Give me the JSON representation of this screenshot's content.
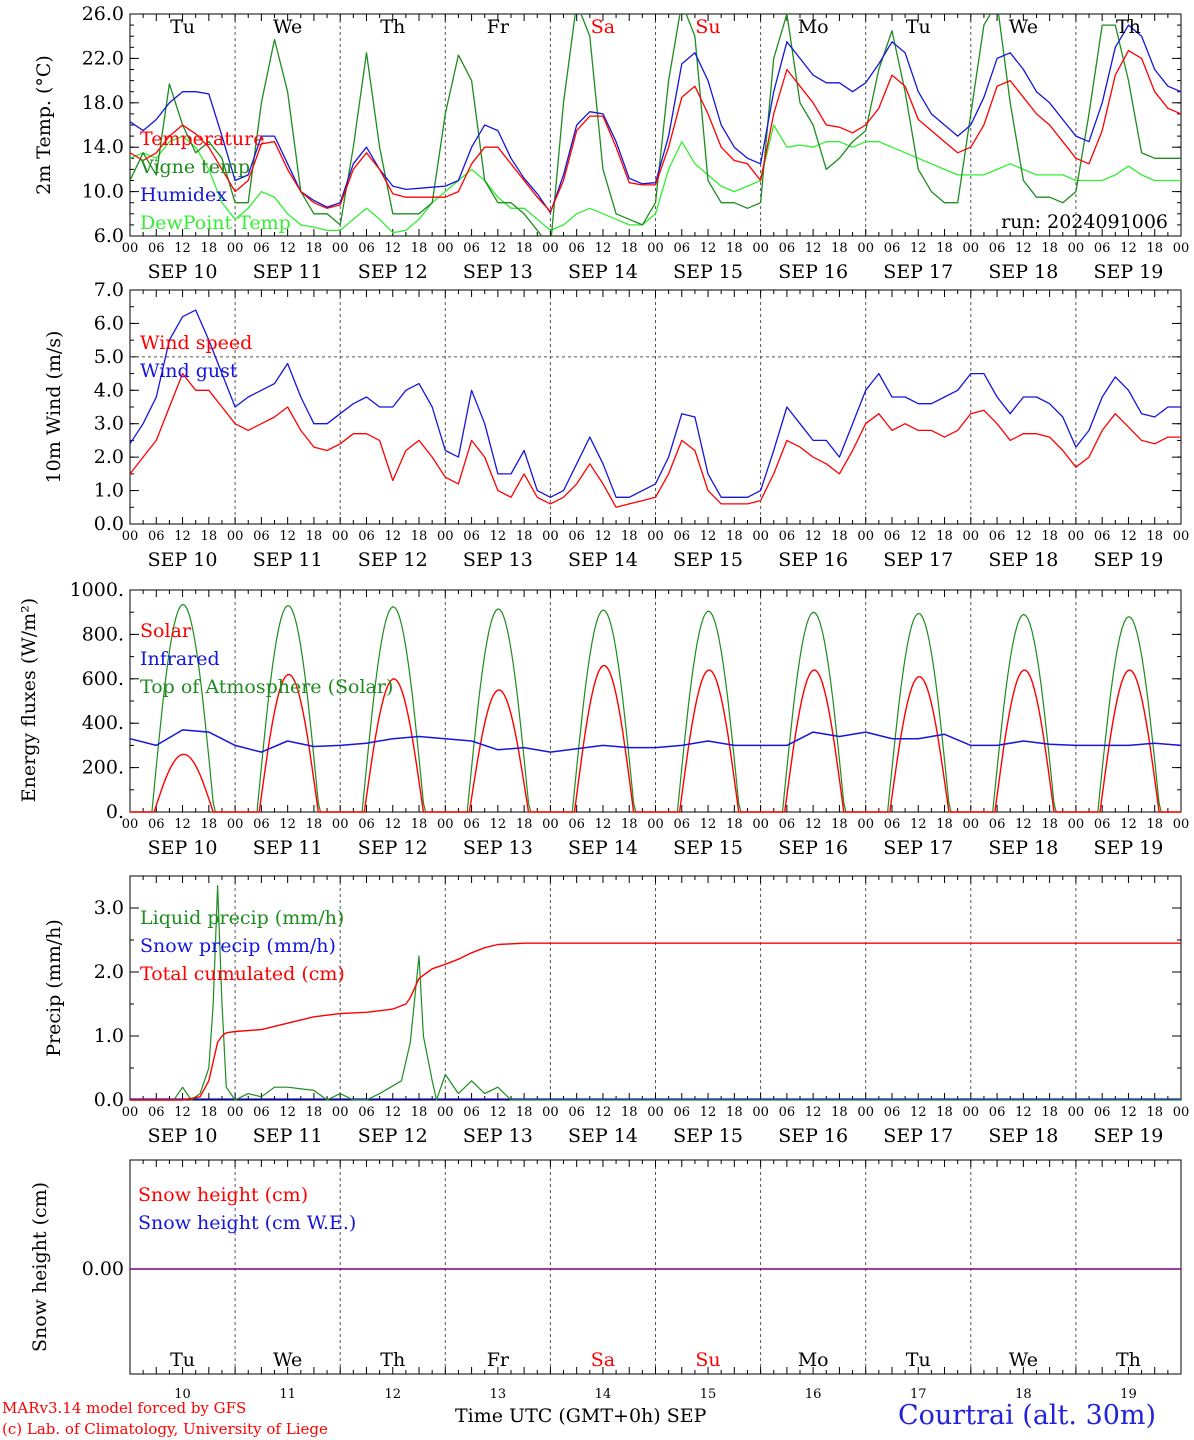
{
  "footer": {
    "credit_line1": "MARv3.14 model forced by GFS",
    "credit_line2": "(c) Lab. of Climatology, University of Liege",
    "xaxis_title": "Time UTC (GMT+0h) SEP",
    "station": "Courtrai (alt. 30m)"
  },
  "colors": {
    "red": "#ff0000",
    "darkgreen": "#1e8c1e",
    "blue": "#1515dd",
    "lightgreen": "#33ee33",
    "purple": "#800080"
  },
  "chart_data": [
    {
      "id": "temperature",
      "type": "line",
      "ylabel": "2m Temp. (°C)",
      "ylim": [
        6,
        26
      ],
      "yticks": [
        "6.0",
        "10.0",
        "14.0",
        "18.0",
        "22.0",
        "26.0"
      ],
      "day_names": [
        "Tu",
        "We",
        "Th",
        "Fr",
        "Sa",
        "Su",
        "Mo",
        "Tu",
        "We",
        "Th"
      ],
      "date_labels": [
        "SEP 10",
        "SEP 11",
        "SEP 12",
        "SEP 13",
        "SEP 14",
        "SEP 15",
        "SEP 16",
        "SEP 17",
        "SEP 18",
        "SEP 19"
      ],
      "hour_labels": [
        "00",
        "06",
        "12",
        "18"
      ],
      "annotation": "run: 2024091006",
      "x_hours": [
        0,
        3,
        6,
        9,
        12,
        15,
        18,
        21,
        24,
        27,
        30,
        33,
        36,
        39,
        42,
        45,
        48,
        51,
        54,
        57,
        60,
        63,
        66,
        69,
        72,
        75,
        78,
        81,
        84,
        87,
        90,
        93,
        96,
        99,
        102,
        105,
        108,
        111,
        114,
        117,
        120,
        123,
        126,
        129,
        132,
        135,
        138,
        141,
        144,
        147,
        150,
        153,
        156,
        159,
        162,
        165,
        168,
        171,
        174,
        177,
        180,
        183,
        186,
        189,
        192,
        195,
        198,
        201,
        204,
        207,
        210,
        213,
        216,
        219,
        222,
        225,
        228,
        231,
        234,
        237,
        240
      ],
      "series": [
        {
          "name": "Temperature",
          "color": "red",
          "values": [
            13.5,
            12.8,
            13.5,
            15,
            16,
            15.2,
            14,
            12,
            10,
            11,
            14.3,
            14.5,
            12,
            10,
            9,
            8.5,
            8.8,
            12,
            13.5,
            12,
            9.8,
            9.5,
            9.5,
            9.5,
            9.5,
            10,
            12.5,
            14,
            14,
            12.5,
            11,
            9.5,
            8.2,
            11,
            15.5,
            16.8,
            16.8,
            14,
            10.8,
            10.6,
            10.6,
            14,
            18.5,
            19.5,
            17,
            14,
            12.8,
            12.5,
            11,
            17,
            21,
            19.5,
            18,
            16,
            15.8,
            15.3,
            16,
            17.5,
            20.5,
            19.5,
            16.5,
            15.5,
            14.5,
            13.5,
            14,
            16,
            19.5,
            20,
            18.5,
            17,
            16,
            14.5,
            13,
            12.5,
            15.5,
            20.5,
            22.7,
            22,
            19,
            17.5,
            17
          ]
        },
        {
          "name": "Vigne temp",
          "color": "darkgreen",
          "values": [
            11,
            13.5,
            11.5,
            19.7,
            16,
            13.5,
            14.5,
            13,
            9,
            9,
            18,
            23.7,
            19,
            10,
            8,
            8,
            7,
            14,
            22.5,
            14,
            8,
            8,
            8,
            9,
            17,
            22.3,
            20,
            11,
            9,
            9,
            8,
            6.5,
            5,
            18,
            27,
            24,
            12,
            8,
            7.5,
            7,
            9,
            20,
            27,
            24,
            11,
            9,
            9,
            8.5,
            9,
            22,
            26,
            18,
            16,
            12,
            13,
            14.5,
            15.5,
            21,
            24.5,
            19,
            12,
            10,
            9,
            9,
            17,
            25,
            27,
            18,
            11,
            9.5,
            9.5,
            9,
            10,
            17,
            25,
            25,
            20,
            13.5,
            13,
            13,
            13
          ]
        },
        {
          "name": "Humidex",
          "color": "blue",
          "values": [
            16.3,
            15.5,
            16.5,
            18,
            19,
            19,
            18.8,
            15,
            11,
            11.5,
            15,
            15,
            12.5,
            10,
            9.2,
            8.6,
            9,
            12.5,
            14,
            12,
            10.5,
            10.2,
            10.3,
            10.4,
            10.5,
            11,
            14,
            16,
            15.5,
            13,
            11.2,
            9.8,
            8.1,
            11.5,
            16,
            17.2,
            17,
            14.5,
            11.2,
            10.7,
            10.8,
            15,
            21.5,
            22.5,
            20,
            16,
            14,
            13,
            12.5,
            19,
            23.5,
            22,
            20.5,
            19.8,
            19.8,
            19,
            19.8,
            21.5,
            23.5,
            22.5,
            19,
            17,
            16,
            15,
            16,
            18.5,
            22,
            22.5,
            21,
            19,
            18,
            16.5,
            15,
            14.5,
            18,
            23,
            25,
            24,
            21,
            19.5,
            19
          ]
        },
        {
          "name": "DewPoint Temp",
          "color": "lightgreen",
          "values": [
            13,
            13.5,
            13,
            14.5,
            15,
            14,
            12,
            9,
            7.5,
            8.5,
            10,
            9.5,
            8,
            7,
            6.8,
            6.5,
            6.5,
            7.5,
            8.5,
            7.5,
            6.3,
            6.5,
            7.5,
            9,
            10,
            11,
            12,
            11,
            9.5,
            8.5,
            8.5,
            7.5,
            6.5,
            7,
            8,
            8.5,
            8,
            7.5,
            7,
            7,
            8,
            12,
            14.5,
            12.5,
            11.5,
            10.5,
            10,
            10.5,
            11,
            16,
            14,
            14.2,
            14,
            14.5,
            14.5,
            14,
            14.5,
            14.5,
            14,
            13.5,
            13,
            12.5,
            12,
            11.5,
            11.5,
            11.5,
            12,
            12.5,
            12,
            11.5,
            11.5,
            11.5,
            11,
            11,
            11,
            11.5,
            12.3,
            11.5,
            11,
            11,
            11
          ]
        }
      ]
    },
    {
      "id": "wind",
      "type": "line",
      "ylabel": "10m Wind (m/s)",
      "ylim": [
        0,
        7
      ],
      "yticks": [
        "0.0",
        "1.0",
        "2.0",
        "3.0",
        "4.0",
        "5.0",
        "6.0",
        "7.0"
      ],
      "date_labels": [
        "SEP 10",
        "SEP 11",
        "SEP 12",
        "SEP 13",
        "SEP 14",
        "SEP 15",
        "SEP 16",
        "SEP 17",
        "SEP 18",
        "SEP 19"
      ],
      "hour_labels": [
        "00",
        "06",
        "12",
        "18"
      ],
      "x_hours": [
        0,
        3,
        6,
        9,
        12,
        15,
        18,
        21,
        24,
        27,
        30,
        33,
        36,
        39,
        42,
        45,
        48,
        51,
        54,
        57,
        60,
        63,
        66,
        69,
        72,
        75,
        78,
        81,
        84,
        87,
        90,
        93,
        96,
        99,
        102,
        105,
        108,
        111,
        114,
        117,
        120,
        123,
        126,
        129,
        132,
        135,
        138,
        141,
        144,
        147,
        150,
        153,
        156,
        159,
        162,
        165,
        168,
        171,
        174,
        177,
        180,
        183,
        186,
        189,
        192,
        195,
        198,
        201,
        204,
        207,
        210,
        213,
        216,
        219,
        222,
        225,
        228,
        231,
        234,
        237,
        240
      ],
      "series": [
        {
          "name": "Wind speed",
          "color": "red",
          "values": [
            1.5,
            2,
            2.5,
            3.5,
            4.5,
            4,
            4,
            3.5,
            3,
            2.8,
            3,
            3.2,
            3.5,
            2.8,
            2.3,
            2.2,
            2.4,
            2.7,
            2.7,
            2.5,
            1.3,
            2.2,
            2.5,
            2,
            1.4,
            1.2,
            2.5,
            2,
            1,
            0.8,
            1.5,
            0.8,
            0.6,
            0.8,
            1.2,
            1.8,
            1.2,
            0.5,
            0.6,
            0.7,
            0.8,
            1.5,
            2.5,
            2.2,
            1,
            0.6,
            0.6,
            0.6,
            0.7,
            1.5,
            2.5,
            2.3,
            2,
            1.8,
            1.5,
            2.2,
            3,
            3.3,
            2.8,
            3,
            2.8,
            2.8,
            2.6,
            2.8,
            3.3,
            3.4,
            3,
            2.5,
            2.7,
            2.7,
            2.6,
            2.2,
            1.7,
            2,
            2.8,
            3.3,
            2.9,
            2.5,
            2.4,
            2.6,
            2.6
          ]
        },
        {
          "name": "Wind gust",
          "color": "blue",
          "values": [
            2.4,
            3,
            3.8,
            5.5,
            6.2,
            6.4,
            5.5,
            4.5,
            3.5,
            3.8,
            4,
            4.2,
            4.8,
            3.8,
            3,
            3,
            3.3,
            3.6,
            3.8,
            3.5,
            3.5,
            4,
            4.2,
            3.5,
            2.2,
            2,
            4,
            3,
            1.5,
            1.5,
            2.2,
            1,
            0.8,
            1,
            1.8,
            2.6,
            1.8,
            0.8,
            0.8,
            1,
            1.2,
            2,
            3.3,
            3.2,
            1.5,
            0.8,
            0.8,
            0.8,
            1,
            2.2,
            3.5,
            3,
            2.5,
            2.5,
            2,
            3,
            4,
            4.5,
            3.8,
            3.8,
            3.6,
            3.6,
            3.8,
            4,
            4.5,
            4.5,
            3.8,
            3.3,
            3.8,
            3.8,
            3.6,
            3.2,
            2.3,
            2.8,
            3.8,
            4.4,
            4,
            3.3,
            3.2,
            3.5,
            3.5
          ]
        }
      ]
    },
    {
      "id": "energy",
      "type": "line",
      "ylabel": "Energy fluxes (W/m²)",
      "ylim": [
        0,
        1000
      ],
      "yticks": [
        "0.",
        "200.",
        "400.",
        "600.",
        "800.",
        "1000."
      ],
      "date_labels": [
        "SEP 10",
        "SEP 11",
        "SEP 12",
        "SEP 13",
        "SEP 14",
        "SEP 15",
        "SEP 16",
        "SEP 17",
        "SEP 18",
        "SEP 19"
      ],
      "hour_labels": [
        "00",
        "06",
        "12",
        "18"
      ],
      "solar_peaks": [
        260,
        620,
        600,
        550,
        660,
        640,
        640,
        610,
        640,
        640
      ],
      "toa_peaks": [
        935,
        930,
        925,
        915,
        910,
        905,
        900,
        895,
        890,
        880
      ],
      "infrared_hours": [
        0,
        6,
        12,
        18,
        24,
        30,
        36,
        42,
        48,
        54,
        60,
        66,
        72,
        78,
        84,
        90,
        96,
        102,
        108,
        114,
        120,
        126,
        132,
        138,
        144,
        150,
        156,
        162,
        168,
        174,
        180,
        186,
        192,
        198,
        204,
        210,
        216,
        222,
        228,
        234,
        240
      ],
      "infrared_values": [
        330,
        300,
        370,
        360,
        300,
        270,
        320,
        295,
        300,
        310,
        330,
        340,
        330,
        320,
        280,
        290,
        270,
        285,
        300,
        290,
        290,
        300,
        320,
        300,
        300,
        300,
        360,
        340,
        360,
        330,
        330,
        350,
        300,
        300,
        320,
        305,
        300,
        300,
        300,
        310,
        300
      ],
      "series": [
        {
          "name": "Solar",
          "color": "red"
        },
        {
          "name": "Infrared",
          "color": "blue"
        },
        {
          "name": "Top of Atmosphere (Solar)",
          "color": "darkgreen"
        }
      ]
    },
    {
      "id": "precip",
      "type": "line",
      "ylabel": "Precip (mm/h)",
      "ylim": [
        0,
        3.5
      ],
      "yticks": [
        "0.0",
        "1.0",
        "2.0",
        "3.0"
      ],
      "date_labels": [
        "SEP 10",
        "SEP 11",
        "SEP 12",
        "SEP 13",
        "SEP 14",
        "SEP 15",
        "SEP 16",
        "SEP 17",
        "SEP 18",
        "SEP 19"
      ],
      "hour_labels": [
        "00",
        "06",
        "12",
        "18"
      ],
      "liquid_hours": [
        0,
        10,
        12,
        14,
        16,
        18,
        19,
        20,
        21,
        22,
        24,
        27,
        30,
        33,
        36,
        42,
        45,
        48,
        51,
        54,
        57,
        62,
        64,
        66,
        67,
        69,
        70,
        72,
        75,
        78,
        81,
        84,
        87,
        90,
        240
      ],
      "liquid_values": [
        0,
        0,
        0.2,
        0,
        0.1,
        0.5,
        1.5,
        3.35,
        1.5,
        0.2,
        0,
        0.1,
        0.05,
        0.2,
        0.2,
        0.15,
        0,
        0.1,
        0,
        0,
        0.1,
        0.3,
        0.9,
        2.25,
        1.0,
        0.3,
        0,
        0.4,
        0.1,
        0.3,
        0.1,
        0.2,
        0,
        0,
        0
      ],
      "cumulated_hours": [
        0,
        12,
        16,
        18,
        20,
        21,
        22,
        24,
        30,
        36,
        42,
        48,
        54,
        60,
        63,
        64,
        66,
        68,
        69,
        72,
        75,
        78,
        81,
        84,
        90,
        240
      ],
      "cumulated_values": [
        0,
        0,
        0.05,
        0.3,
        0.9,
        1.0,
        1.05,
        1.07,
        1.1,
        1.2,
        1.3,
        1.35,
        1.37,
        1.42,
        1.5,
        1.6,
        1.9,
        2.0,
        2.05,
        2.12,
        2.2,
        2.3,
        2.38,
        2.43,
        2.45,
        2.45
      ],
      "series": [
        {
          "name": "Liquid precip (mm/h)",
          "color": "darkgreen"
        },
        {
          "name": "Snow precip (mm/h)",
          "color": "blue"
        },
        {
          "name": "Total cumulated (cm)",
          "color": "red"
        }
      ]
    },
    {
      "id": "snow",
      "type": "line",
      "ylabel": "Snow height (cm)",
      "yticks": [
        "0.00"
      ],
      "day_names": [
        "Tu",
        "We",
        "Th",
        "Fr",
        "Sa",
        "Su",
        "Mo",
        "Tu",
        "We",
        "Th"
      ],
      "day_numbers": [
        "10",
        "11",
        "12",
        "13",
        "14",
        "15",
        "16",
        "17",
        "18",
        "19"
      ],
      "series": [
        {
          "name": "Snow height (cm)",
          "color": "red"
        },
        {
          "name": "Snow height (cm W.E.)",
          "color": "blue"
        }
      ]
    }
  ]
}
